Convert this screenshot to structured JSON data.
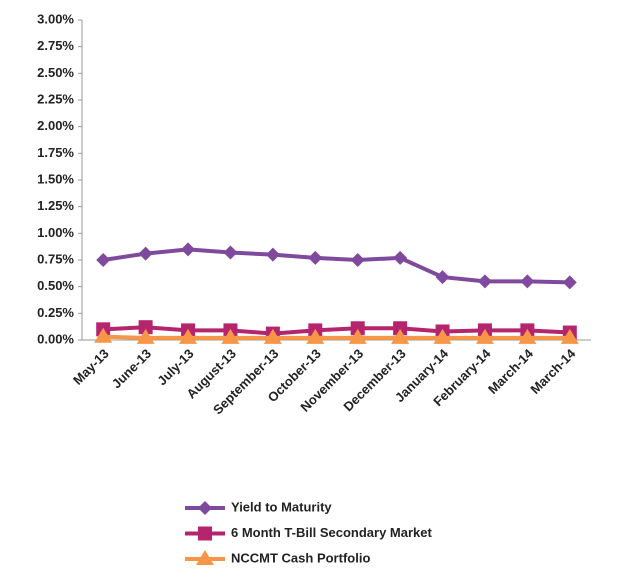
{
  "chart_data": {
    "type": "line",
    "categories": [
      "May-13",
      "June-13",
      "July-13",
      "August-13",
      "September-13",
      "October-13",
      "November-13",
      "December-13",
      "January-14",
      "February-14",
      "March-14",
      "March-14"
    ],
    "series": [
      {
        "name": "Yield to Maturity",
        "color": "#7f4a9e",
        "marker": "diamond",
        "values": [
          0.75,
          0.81,
          0.85,
          0.82,
          0.8,
          0.77,
          0.75,
          0.77,
          0.59,
          0.55,
          0.55,
          0.54
        ]
      },
      {
        "name": "6 Month T-Bill Secondary Market",
        "color": "#b5256e",
        "marker": "square",
        "values": [
          0.1,
          0.12,
          0.09,
          0.09,
          0.06,
          0.09,
          0.11,
          0.11,
          0.08,
          0.09,
          0.09,
          0.07
        ]
      },
      {
        "name": "NCCMT Cash Portfolio",
        "color": "#f79646",
        "marker": "triangle",
        "values": [
          0.03,
          0.02,
          0.02,
          0.02,
          0.02,
          0.02,
          0.02,
          0.02,
          0.02,
          0.02,
          0.02,
          0.02
        ]
      }
    ],
    "ylim": [
      0,
      3
    ],
    "yticks": [
      {
        "value": 0,
        "label": "0.00%"
      },
      {
        "value": 0.25,
        "label": "0.25%"
      },
      {
        "value": 0.5,
        "label": "0.50%"
      },
      {
        "value": 0.75,
        "label": "0.75%"
      },
      {
        "value": 1,
        "label": "1.00%"
      },
      {
        "value": 1.25,
        "label": "1.25%"
      },
      {
        "value": 1.5,
        "label": "1.50%"
      },
      {
        "value": 1.75,
        "label": "1.75%"
      },
      {
        "value": 2,
        "label": "2.00%"
      },
      {
        "value": 2.25,
        "label": "2.25%"
      },
      {
        "value": 2.5,
        "label": "2.50%"
      },
      {
        "value": 2.75,
        "label": "2.75%"
      },
      {
        "value": 3,
        "label": "3.00%"
      }
    ],
    "grid": false,
    "legend": "bottom"
  }
}
